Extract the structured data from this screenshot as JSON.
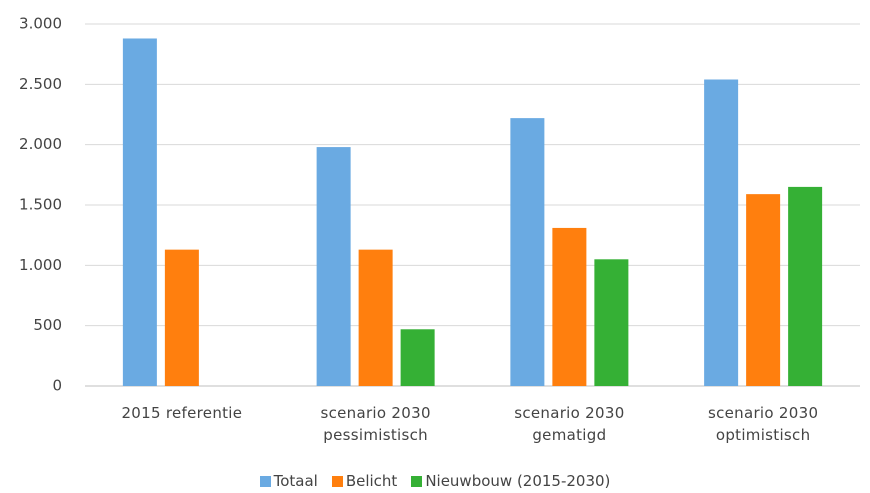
{
  "chart_data": {
    "type": "bar",
    "categories": [
      "2015 referentie",
      "scenario 2030 pessimistisch",
      "scenario 2030 gematigd",
      "scenario 2030 optimistisch"
    ],
    "series": [
      {
        "name": "Totaal",
        "color": "#6aaae2",
        "values": [
          2880,
          1980,
          2220,
          2540
        ]
      },
      {
        "name": "Belicht",
        "color": "#ff7f0e",
        "values": [
          1130,
          1130,
          1310,
          1590
        ]
      },
      {
        "name": "Nieuwbouw (2015-2030)",
        "color": "#35b035",
        "values": [
          null,
          470,
          1050,
          1650
        ]
      }
    ],
    "ylim": [
      0,
      3000
    ],
    "yticks": [
      0,
      500,
      {
        "value": 1000,
        "label": "1.000"
      },
      {
        "value": 1500,
        "label": "1.500"
      },
      {
        "value": 2000,
        "label": "2.000"
      },
      {
        "value": 2500,
        "label": "2.500"
      },
      {
        "value": 3000,
        "label": "3.000"
      }
    ],
    "grid": true,
    "legend": "bottom"
  }
}
